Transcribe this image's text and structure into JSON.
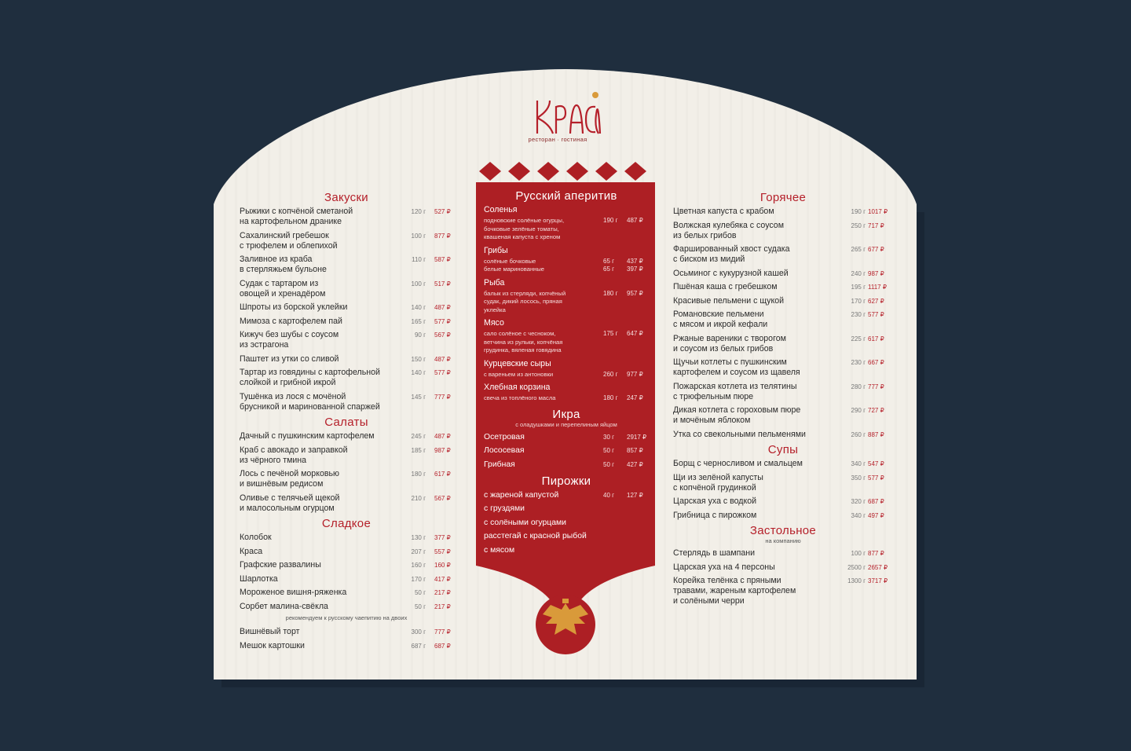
{
  "brand": {
    "name": "Краса",
    "tagline": "ресторан · гостиная",
    "accent": "#b5202a",
    "panel": "#ad1f24",
    "paper": "#f2efe8",
    "background": "#1f2e3e",
    "emblem": "double-headed-eagle-icon"
  },
  "left": [
    {
      "title": "Закуски",
      "items": [
        {
          "name": "Рыжики с копчёной сметаной\nна картофельном дранике",
          "weight": "120 г",
          "price": "527 ₽"
        },
        {
          "name": "Сахалинский гребешок\nс трюфелем и облепихой",
          "weight": "100 г",
          "price": "877 ₽"
        },
        {
          "name": "Заливное из краба\nв стерляжьем бульоне",
          "weight": "110 г",
          "price": "587 ₽"
        },
        {
          "name": "Судак с тартаром из\nовощей и хренадёром",
          "weight": "100 г",
          "price": "517 ₽"
        },
        {
          "name": "Шпроты из борской уклейки",
          "weight": "140 г",
          "price": "487 ₽"
        },
        {
          "name": "Мимоза с картофелем пай",
          "weight": "165 г",
          "price": "577 ₽"
        },
        {
          "name": "Кижуч без шубы с соусом\nиз эстрагона",
          "weight": "90 г",
          "price": "567 ₽"
        },
        {
          "name": "Паштет из утки со сливой",
          "weight": "150 г",
          "price": "487 ₽"
        },
        {
          "name": "Тартар из говядины с картофельной\nслойкой и грибной икрой",
          "weight": "140 г",
          "price": "577 ₽"
        },
        {
          "name": "Тушёнка из лося с мочёной\nбрусникой и маринованной спаржей",
          "weight": "145 г",
          "price": "777 ₽"
        }
      ]
    },
    {
      "title": "Салаты",
      "items": [
        {
          "name": "Дачный с пушкинским картофелем",
          "weight": "245 г",
          "price": "487 ₽"
        },
        {
          "name": "Краб с авокадо и заправкой\nиз чёрного тмина",
          "weight": "185 г",
          "price": "987 ₽"
        },
        {
          "name": "Лось с печёной морковью\nи вишнёвым редисом",
          "weight": "180 г",
          "price": "617 ₽"
        },
        {
          "name": "Оливье с телячьей щекой\nи малосольным огурцом",
          "weight": "210 г",
          "price": "567 ₽"
        }
      ]
    },
    {
      "title": "Сладкое",
      "items": [
        {
          "name": "Колобок",
          "weight": "130 г",
          "price": "377 ₽"
        },
        {
          "name": "Краса",
          "weight": "207 г",
          "price": "557 ₽"
        },
        {
          "name": "Графские развалины",
          "weight": "160 г",
          "price": "160 ₽"
        },
        {
          "name": "Шарлотка",
          "weight": "170 г",
          "price": "417 ₽"
        },
        {
          "name": "Мороженое вишня-ряженка",
          "weight": "50 г",
          "price": "217 ₽"
        },
        {
          "name": "Сорбет малина-свёкла",
          "weight": "50 г",
          "price": "217 ₽"
        }
      ],
      "note": "рекомендуем к русскому чаепитию на двоих",
      "items_after": [
        {
          "name": "Вишнёвый торт",
          "weight": "300 г",
          "price": "777 ₽"
        },
        {
          "name": "Мешок картошки",
          "weight": "687 г",
          "price": "687 ₽"
        }
      ]
    }
  ],
  "center": {
    "aperitif": {
      "title": "Русский аперитив",
      "groups": [
        {
          "title": "Соленья",
          "rows": [
            {
              "desc": "подновские солёные огурцы,\nбочковые зелёные томаты,\nквашеная капуста с хреном",
              "weight": "190 г",
              "price": "487 ₽"
            }
          ]
        },
        {
          "title": "Грибы",
          "rows": [
            {
              "desc": "солёные бочковые",
              "weight": "65 г",
              "price": "437 ₽"
            },
            {
              "desc": "белые маринованные",
              "weight": "65 г",
              "price": "397 ₽"
            }
          ]
        },
        {
          "title": "Рыба",
          "rows": [
            {
              "desc": "балык из стерляди, копчёный\nсудак, дикий лосось, пряная\nуклейка",
              "weight": "180 г",
              "price": "957 ₽"
            }
          ]
        },
        {
          "title": "Мясо",
          "rows": [
            {
              "desc": "сало солёное с чесноком,\nветчина из рульки, копчёная\nгрудинка, вяленая говядина",
              "weight": "175 г",
              "price": "647 ₽"
            }
          ]
        },
        {
          "title": "Курцевские сыры",
          "rows": [
            {
              "desc": "с вареньем из антоновки",
              "weight": "260 г",
              "price": "977 ₽"
            }
          ]
        },
        {
          "title": "Хлебная корзина",
          "rows": [
            {
              "desc": "свеча из топлёного масла",
              "weight": "180 г",
              "price": "247 ₽"
            }
          ]
        }
      ]
    },
    "caviar": {
      "title": "Икра",
      "subtitle": "с оладушками и перепелиным яйцом",
      "items": [
        {
          "name": "Осетровая",
          "weight": "30 г",
          "price": "2917 ₽"
        },
        {
          "name": "Лососевая",
          "weight": "50 г",
          "price": "857 ₽"
        },
        {
          "name": "Грибная",
          "weight": "50 г",
          "price": "427 ₽"
        }
      ]
    },
    "pies": {
      "title": "Пирожки",
      "items": [
        {
          "name": "с жареной капустой",
          "weight": "40 г",
          "price": "127 ₽"
        },
        {
          "name": "с груздями"
        },
        {
          "name": "с солёными огурцами"
        },
        {
          "name": "расстегай с красной рыбой"
        },
        {
          "name": "с мясом"
        }
      ]
    }
  },
  "right": [
    {
      "title": "Горячее",
      "items": [
        {
          "name": "Цветная капуста с крабом",
          "weight": "190 г",
          "price": "1017 ₽"
        },
        {
          "name": "Волжская кулебяка с соусом\nиз белых грибов",
          "weight": "250 г",
          "price": "717 ₽"
        },
        {
          "name": "Фаршированный хвост судака\nс биском из мидий",
          "weight": "265 г",
          "price": "677 ₽"
        },
        {
          "name": "Осьминог с кукурузной кашей",
          "weight": "240 г",
          "price": "987 ₽"
        },
        {
          "name": "Пшёная каша с гребешком",
          "weight": "195 г",
          "price": "1117 ₽"
        },
        {
          "name": "Красивые пельмени с щукой",
          "weight": "170 г",
          "price": "627 ₽"
        },
        {
          "name": "Романовские пельмени\nс мясом и икрой кефали",
          "weight": "230 г",
          "price": "577 ₽"
        },
        {
          "name": "Ржаные вареники с творогом\nи соусом из белых грибов",
          "weight": "225 г",
          "price": "617 ₽"
        },
        {
          "name": "Щучьи котлеты с пушкинским\nкартофелем и соусом из щавеля",
          "weight": "230 г",
          "price": "667 ₽"
        },
        {
          "name": "Пожарская котлета из телятины\nс трюфельным пюре",
          "weight": "280 г",
          "price": "777 ₽"
        },
        {
          "name": "Дикая котлета с гороховым пюре\nи мочёным яблоком",
          "weight": "290 г",
          "price": "727 ₽"
        },
        {
          "name": "Утка со свекольными пельменями",
          "weight": "260 г",
          "price": "887 ₽"
        }
      ]
    },
    {
      "title": "Супы",
      "items": [
        {
          "name": "Борщ с черносливом и смальцем",
          "weight": "340 г",
          "price": "547 ₽"
        },
        {
          "name": "Щи из зелёной капусты\nс копчёной грудинкой",
          "weight": "350 г",
          "price": "577 ₽"
        },
        {
          "name": "Царская уха с водкой",
          "weight": "320 г",
          "price": "687 ₽"
        },
        {
          "name": "Грибница с пирожком",
          "weight": "340 г",
          "price": "497 ₽"
        }
      ]
    },
    {
      "title": "Застольное",
      "subtitle": "на компанию",
      "items": [
        {
          "name": "Стерлядь в шампани",
          "weight": "100 г",
          "price": "877 ₽"
        },
        {
          "name": "Царская уха на 4 персоны",
          "weight": "2500 г",
          "price": "2657 ₽"
        },
        {
          "name": "Корейка телёнка с пряными\nтравами, жареным картофелем\nи солёными черри",
          "weight": "1300 г",
          "price": "3717 ₽"
        }
      ]
    }
  ]
}
